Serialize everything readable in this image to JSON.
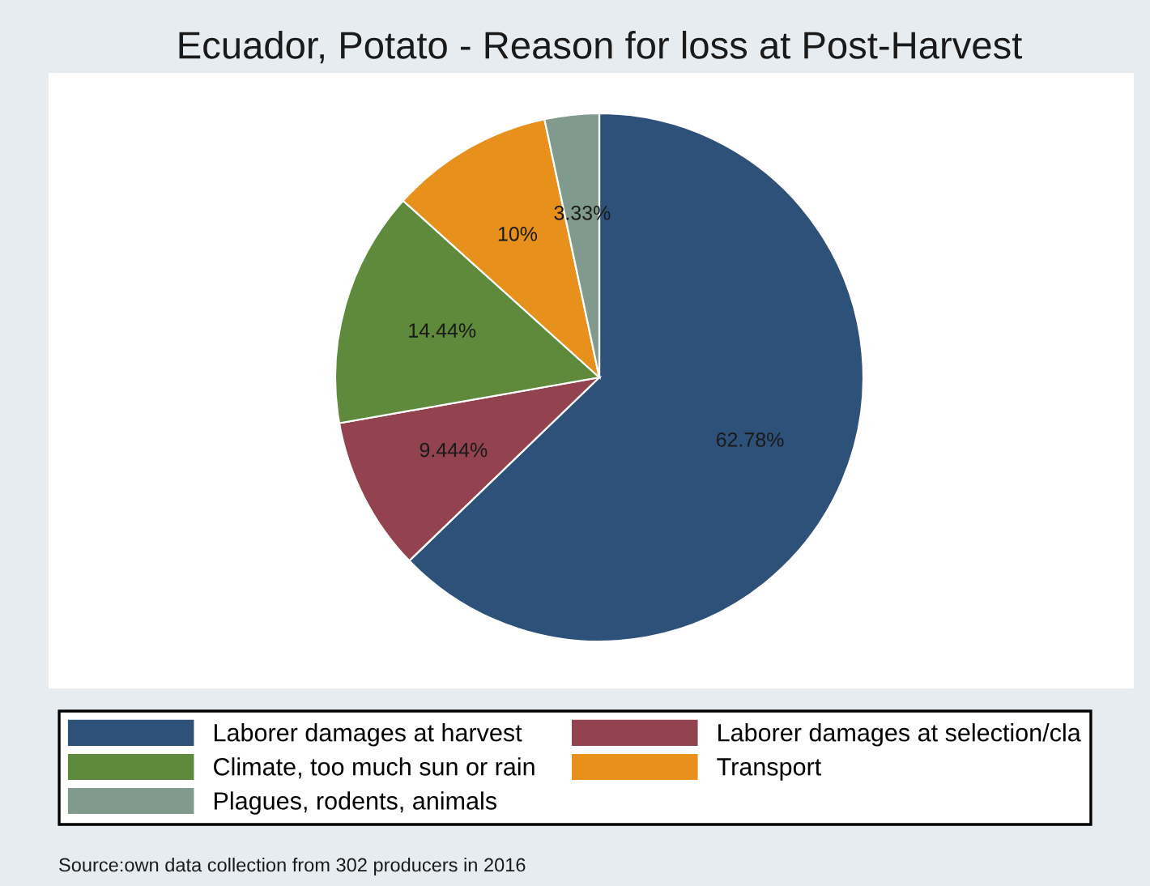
{
  "chart_data": {
    "type": "pie",
    "title": "Ecuador, Potato - Reason for loss at Post-Harvest",
    "categories": [
      "Laborer damages at harvest",
      "Laborer damages at selection/cla",
      "Climate, too much sun or rain",
      "Transport",
      "Plagues, rodents, animals"
    ],
    "values": [
      62.78,
      9.444,
      14.44,
      10,
      3.33
    ],
    "value_labels": [
      "62.78%",
      "9.444%",
      "14.44%",
      "10%",
      "3.33%"
    ],
    "colors": [
      "#2e5179",
      "#93424f",
      "#5f8a3b",
      "#e8901c",
      "#809b8e"
    ],
    "legend": "bottom",
    "annotations": [
      "Source:own data collection from 302 producers in 2016"
    ]
  }
}
